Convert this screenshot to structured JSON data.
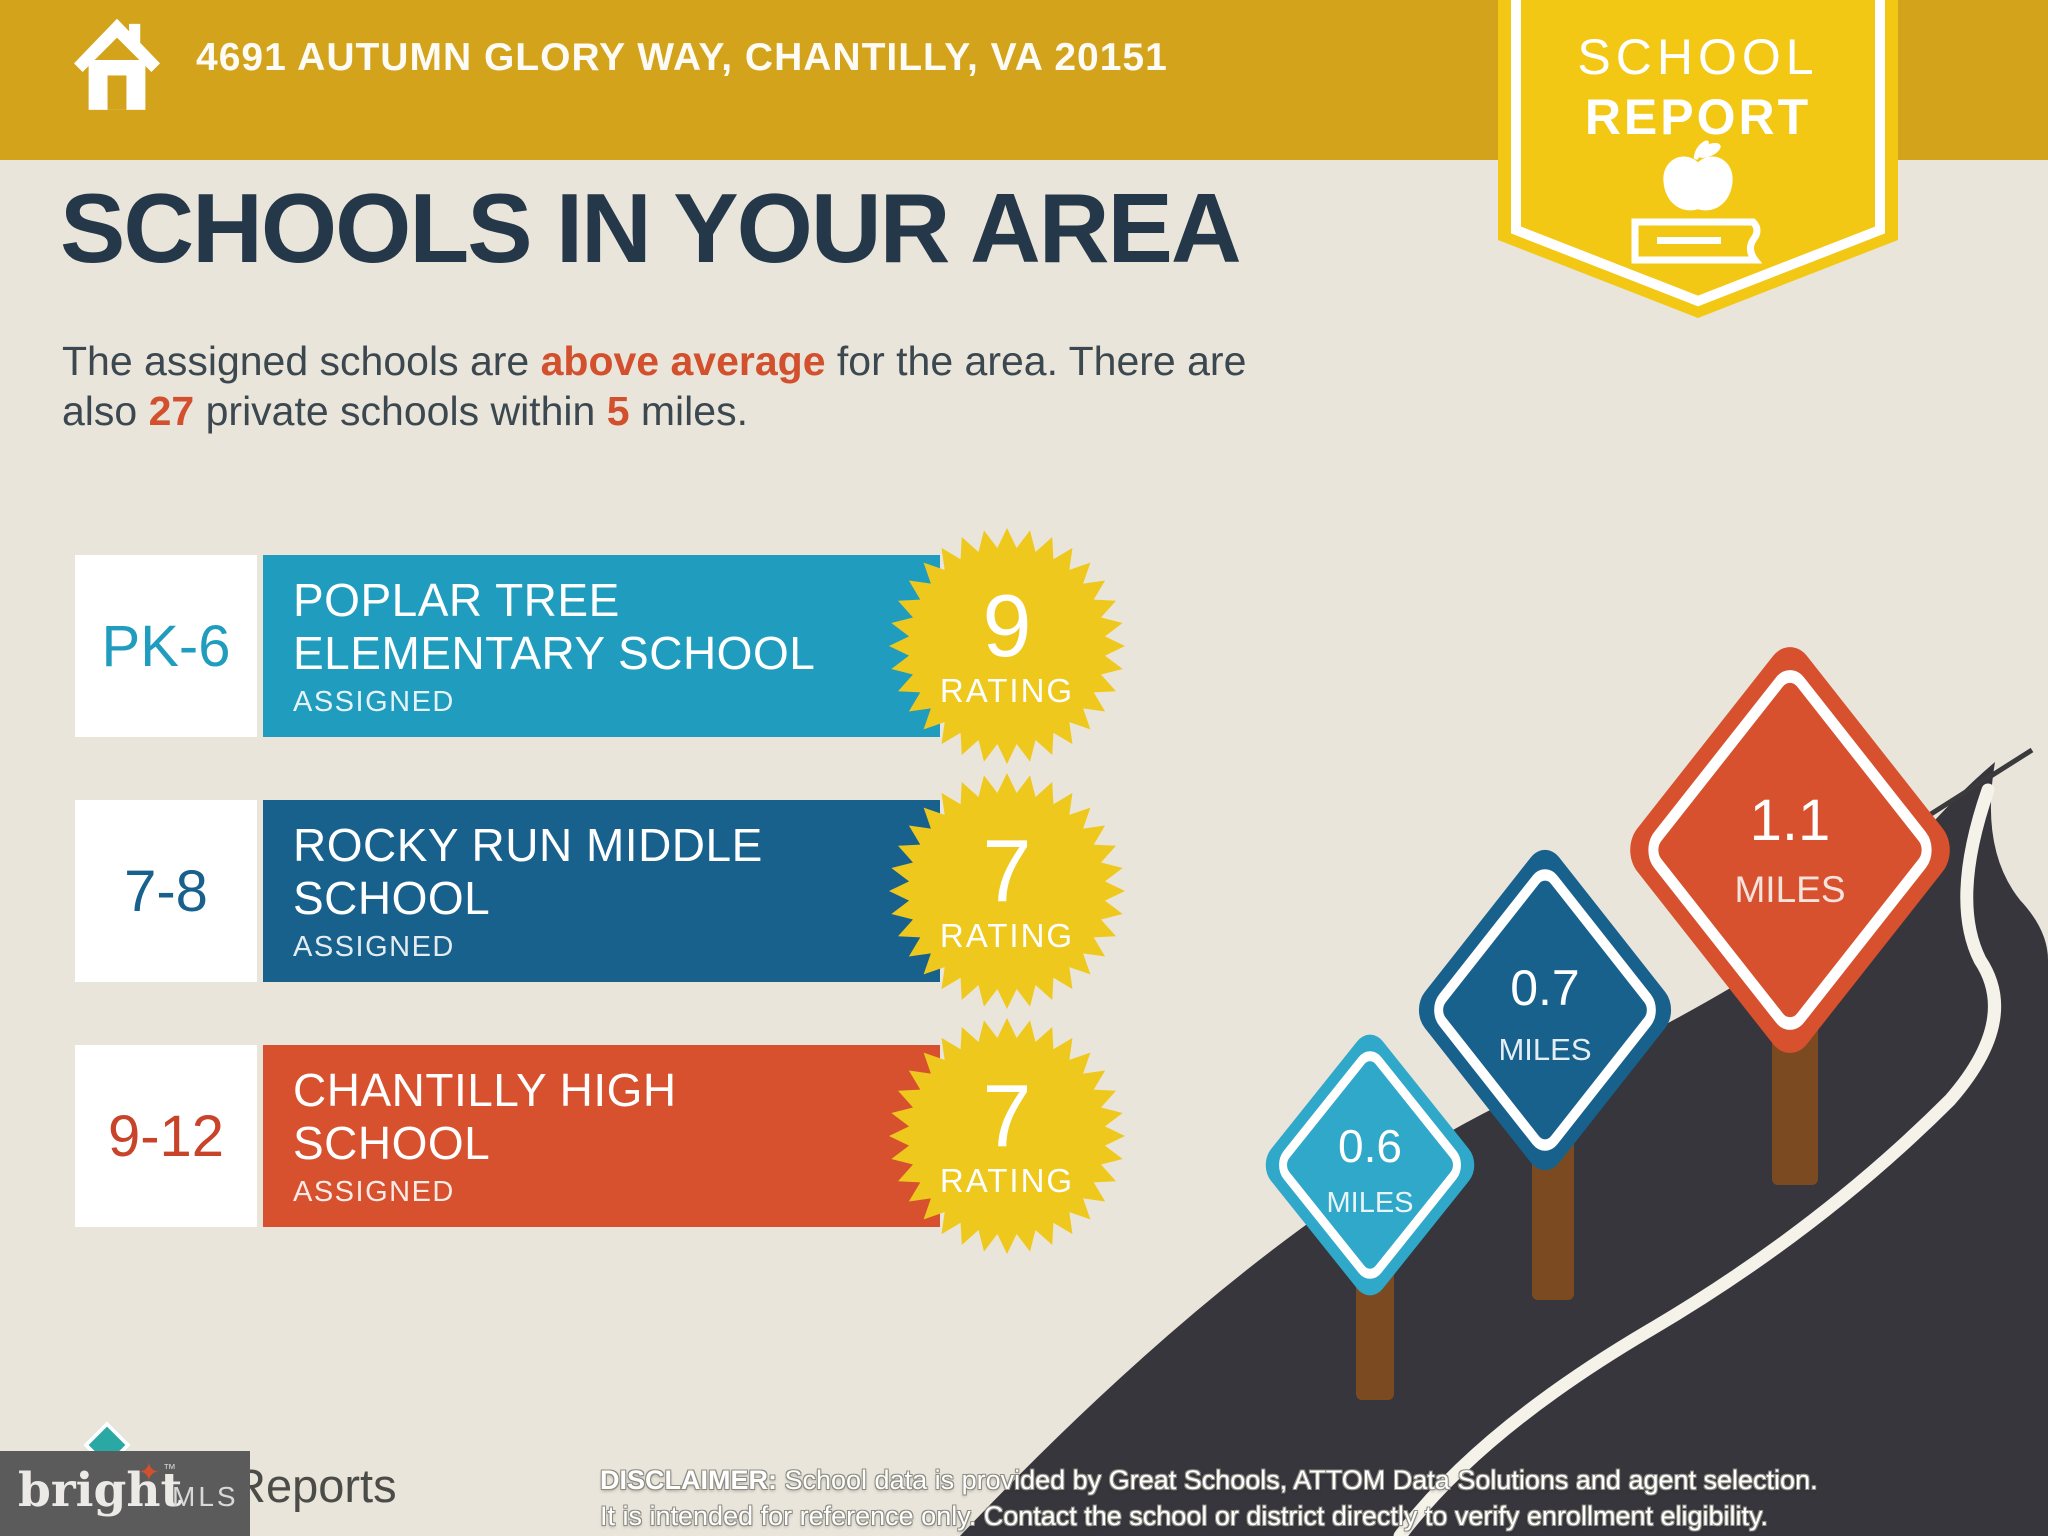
{
  "colors": {
    "background": "#EAE5DA",
    "topbar_gold": "#D4A31C",
    "badge_yellow": "#F3C814",
    "navy": "#25384A",
    "body_text": "#3C4850",
    "accent_red": "#D2502D",
    "teal": "#209DBE",
    "blue": "#17618C",
    "red_bar": "#D8512F",
    "star_yellow": "#EFC81D",
    "road": "#37363C",
    "post_brown": "#7C4A21",
    "sign_cyan": "#2FA8C9",
    "white": "#FFFFFF"
  },
  "header": {
    "address": "4691 AUTUMN GLORY WAY, CHANTILLY, VA 20151",
    "badge": {
      "line1": "SCHOOL",
      "line2": "REPORT"
    }
  },
  "main": {
    "title": "SCHOOLS IN YOUR AREA",
    "subtitle": {
      "l1a": "The assigned schools are ",
      "l1b": "above average",
      "l1c": " for the area. There are",
      "l2a": "also ",
      "l2b": "27",
      "l2c": " private schools within ",
      "l2d": "5",
      "l2e": " miles."
    }
  },
  "schools": [
    {
      "grades": "PK-6",
      "name_line1": "POPLAR TREE",
      "name_line2": "ELEMENTARY SCHOOL",
      "status": "ASSIGNED",
      "rating": "9",
      "rating_label": "RATING",
      "color": "#209DBE"
    },
    {
      "grades": "7-8",
      "name_line1": "ROCKY RUN MIDDLE",
      "name_line2": "SCHOOL",
      "status": "ASSIGNED",
      "rating": "7",
      "rating_label": "RATING",
      "color": "#17618C"
    },
    {
      "grades": "9-12",
      "name_line1": "CHANTILLY HIGH",
      "name_line2": "SCHOOL",
      "status": "ASSIGNED",
      "rating": "7",
      "rating_label": "RATING",
      "color": "#D8512F"
    }
  ],
  "signs": [
    {
      "distance": "0.6",
      "unit": "MILES",
      "color": "#2FA8C9"
    },
    {
      "distance": "0.7",
      "unit": "MILES",
      "color": "#17618C"
    },
    {
      "distance": "1.1",
      "unit": "MILES",
      "color": "#D8512F"
    }
  ],
  "footer": {
    "disclaimer_label": "DISCLAIMER:",
    "disclaimer_line1": " School data is provided by Great Schools, ATTOM Data Solutions and agent selection.",
    "disclaimer_line2": "It is intended for reference only. Contact the school or district directly to verify enrollment eligibility.",
    "brand": {
      "bright": "bright",
      "star": "✦",
      "tm": "™",
      "mls": "MLS"
    },
    "reports": "Reports"
  }
}
